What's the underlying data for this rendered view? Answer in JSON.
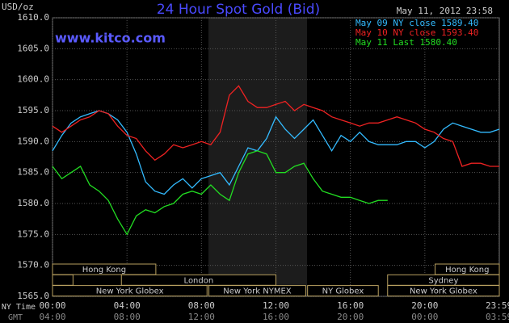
{
  "chart_data": {
    "type": "line",
    "title": "24 Hour Spot Gold (Bid)",
    "timestamp": "May 11, 2012 23:58",
    "watermark": "www.kitco.com",
    "ylabel": "USD/oz",
    "xlabel_rows": [
      "NY Time",
      "GMT"
    ],
    "x": [
      0,
      0.5,
      1,
      1.5,
      2,
      2.5,
      3,
      3.5,
      4,
      4.5,
      5,
      5.5,
      6,
      6.5,
      7,
      7.5,
      8,
      8.5,
      9,
      9.5,
      10,
      10.5,
      11,
      11.5,
      12,
      12.5,
      13,
      13.5,
      14,
      14.5,
      15,
      15.5,
      16,
      16.5,
      17,
      17.5,
      18,
      18.5,
      19,
      19.5,
      20,
      20.5,
      21,
      21.5,
      22,
      22.5,
      23,
      23.5,
      24
    ],
    "series": [
      {
        "name": "May 09 NY close 1589.40",
        "color": "#33bbff",
        "values": [
          1588.5,
          1591,
          1593,
          1594,
          1594.5,
          1595,
          1594.5,
          1593.5,
          1591.5,
          1588,
          1583.5,
          1582,
          1581.5,
          1583,
          1584,
          1582.5,
          1584,
          1584.5,
          1585,
          1583,
          1586,
          1589,
          1588.5,
          1590.5,
          1594,
          1592,
          1590.5,
          1592,
          1593.5,
          1591,
          1588.5,
          1591,
          1590,
          1591.5,
          1590,
          1589.5,
          1589.5,
          1589.5,
          1590,
          1590,
          1589,
          1590,
          1592,
          1593,
          1592.5,
          1592,
          1591.5,
          1591.5,
          1592
        ]
      },
      {
        "name": "May 10 NY close 1593.40",
        "color": "#ee2222",
        "values": [
          1592.5,
          1591.5,
          1592.5,
          1593.5,
          1594,
          1595,
          1594.5,
          1592.5,
          1591,
          1590.5,
          1588.5,
          1587,
          1588,
          1589.5,
          1589,
          1589.5,
          1590,
          1589.5,
          1591.5,
          1597.5,
          1599,
          1596.5,
          1595.5,
          1595.5,
          1596,
          1596.5,
          1595,
          1596,
          1595.5,
          1595,
          1594,
          1593.5,
          1593,
          1592.5,
          1593,
          1593,
          1593.5,
          1594,
          1593.5,
          1593,
          1592,
          1591.5,
          1590.5,
          1590,
          1586,
          1586.5,
          1586.5,
          1586,
          1586
        ]
      },
      {
        "name": "May 11 Last 1580.40",
        "color": "#22dd22",
        "values": [
          1586,
          1584,
          1585,
          1586,
          1583,
          1582,
          1580.5,
          1577.5,
          1575,
          1578,
          1579,
          1578.5,
          1579.5,
          1580,
          1581.5,
          1582,
          1581.5,
          1583,
          1581.5,
          1580.5,
          1585,
          1588,
          1588.5,
          1588,
          1585,
          1585,
          1586,
          1586.5,
          1584,
          1582,
          1581.5,
          1581,
          1581,
          1580.5,
          1580,
          1580.5,
          1580.5,
          null,
          null,
          null,
          null,
          null,
          null,
          null,
          null,
          null,
          null,
          null,
          null
        ]
      }
    ],
    "xlim": [
      0,
      24
    ],
    "xticks": [
      {
        "value": 0,
        "label": "00:00"
      },
      {
        "value": 4,
        "label": "04:00"
      },
      {
        "value": 8,
        "label": "08:00"
      },
      {
        "value": 12,
        "label": "12:00"
      },
      {
        "value": 16,
        "label": "16:00"
      },
      {
        "value": 20,
        "label": "20:00"
      },
      {
        "value": 23.983,
        "label": "23:59"
      }
    ],
    "x2tick_labels": [
      "04:00",
      "08:00",
      "12:00",
      "16:00",
      "20:00",
      "00:00",
      "03:59"
    ],
    "ylim": [
      1565,
      1610
    ],
    "yticks": [
      {
        "value": 1565,
        "label": "1565.0"
      },
      {
        "value": 1570,
        "label": "1570.0"
      },
      {
        "value": 1575,
        "label": "1575.0"
      },
      {
        "value": 1580,
        "label": "1580.0"
      },
      {
        "value": 1585,
        "label": "1585.0"
      },
      {
        "value": 1590,
        "label": "1590.0"
      },
      {
        "value": 1595,
        "label": "1595.0"
      },
      {
        "value": 1600,
        "label": "1600.0"
      },
      {
        "value": 1605,
        "label": "1605.0"
      },
      {
        "value": 1610,
        "label": "1610.0"
      }
    ],
    "grid": true,
    "sessions": [
      {
        "label": "Hong Kong",
        "row": 0,
        "start": 0,
        "end": 5.55
      },
      {
        "label": "Hong Kong",
        "row": 0,
        "start": 20.55,
        "end": 24
      },
      {
        "label": null,
        "row": 1,
        "start": 0,
        "end": 1.1
      },
      {
        "label": "London",
        "row": 1,
        "start": 3.7,
        "end": 12
      },
      {
        "label": "Sydney",
        "row": 1,
        "start": 18,
        "end": 24
      },
      {
        "label": "New York Globex",
        "row": 2,
        "start": 0,
        "end": 8.3
      },
      {
        "label": "New York NYMEX",
        "row": 2,
        "start": 8.4,
        "end": 13.6
      },
      {
        "label": "NY Globex",
        "row": 2,
        "start": 13.7,
        "end": 17.5
      },
      {
        "label": "New York Globex",
        "row": 2,
        "start": 18,
        "end": 24
      }
    ]
  }
}
